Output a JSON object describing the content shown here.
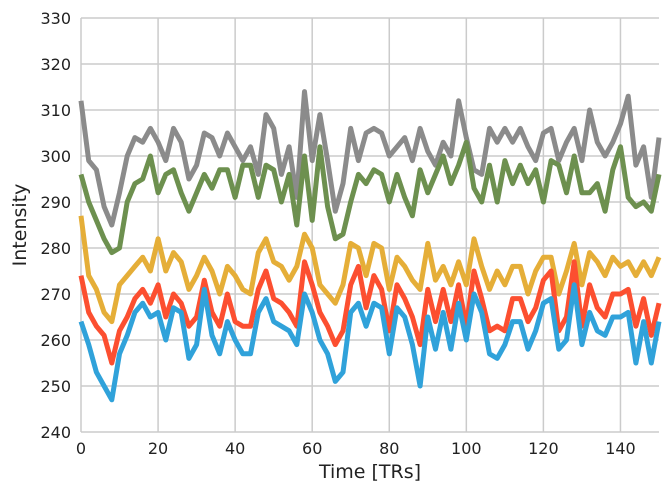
{
  "chart_data": {
    "type": "line",
    "title": "",
    "xlabel": "Time [TRs]",
    "ylabel": "Intensity",
    "xlim": [
      0,
      150
    ],
    "ylim": [
      240,
      330
    ],
    "xticks": [
      0,
      20,
      40,
      60,
      80,
      100,
      120,
      140
    ],
    "yticks": [
      240,
      250,
      260,
      270,
      280,
      290,
      300,
      310,
      320,
      330
    ],
    "grid": true,
    "legend": "none",
    "x": [
      0,
      2,
      4,
      6,
      8,
      10,
      12,
      14,
      16,
      18,
      20,
      22,
      24,
      26,
      28,
      30,
      32,
      34,
      36,
      38,
      40,
      42,
      44,
      46,
      48,
      50,
      52,
      54,
      56,
      58,
      60,
      62,
      64,
      66,
      68,
      70,
      72,
      74,
      76,
      78,
      80,
      82,
      84,
      86,
      88,
      90,
      92,
      94,
      96,
      98,
      100,
      102,
      104,
      106,
      108,
      110,
      112,
      114,
      116,
      118,
      120,
      122,
      124,
      126,
      128,
      130,
      132,
      134,
      136,
      138,
      140,
      142,
      144,
      146,
      148,
      150
    ],
    "series": [
      {
        "color": "#8b8b8b",
        "values": [
          312,
          299,
          297,
          289,
          285,
          292,
          300,
          304,
          303,
          306,
          303,
          299,
          306,
          303,
          295,
          298,
          305,
          304,
          300,
          305,
          302,
          299,
          302,
          296,
          309,
          306,
          296,
          302,
          291,
          314,
          299,
          309,
          299,
          288,
          294,
          306,
          299,
          305,
          306,
          305,
          300,
          302,
          304,
          299,
          306,
          301,
          298,
          303,
          300,
          312,
          304,
          297,
          296,
          306,
          303,
          306,
          303,
          306,
          302,
          299,
          305,
          306,
          299,
          303,
          306,
          299,
          310,
          303,
          300,
          303,
          307,
          313,
          298,
          302,
          291,
          304
        ]
      },
      {
        "color": "#6d904f",
        "values": [
          296,
          290,
          286,
          282,
          279,
          280,
          290,
          294,
          295,
          300,
          292,
          296,
          297,
          292,
          288,
          292,
          296,
          293,
          297,
          297,
          291,
          298,
          298,
          291,
          298,
          297,
          290,
          296,
          285,
          300,
          286,
          302,
          289,
          282,
          283,
          290,
          296,
          294,
          297,
          296,
          290,
          296,
          291,
          287,
          297,
          292,
          296,
          300,
          294,
          298,
          303,
          293,
          290,
          298,
          290,
          299,
          294,
          298,
          294,
          297,
          290,
          299,
          298,
          292,
          300,
          292,
          292,
          294,
          288,
          297,
          302,
          291,
          289,
          290,
          288,
          296
        ]
      },
      {
        "color": "#e5ae38",
        "values": [
          287,
          274,
          271,
          266,
          264,
          272,
          274,
          276,
          278,
          275,
          282,
          275,
          279,
          277,
          271,
          274,
          278,
          275,
          270,
          276,
          274,
          271,
          270,
          279,
          282,
          277,
          276,
          273,
          276,
          283,
          280,
          272,
          270,
          268,
          272,
          281,
          280,
          274,
          281,
          280,
          271,
          278,
          276,
          273,
          271,
          281,
          273,
          276,
          272,
          277,
          272,
          282,
          276,
          271,
          275,
          272,
          276,
          276,
          270,
          275,
          278,
          278,
          270,
          275,
          281,
          272,
          279,
          277,
          274,
          278,
          276,
          277,
          274,
          277,
          274,
          278
        ]
      },
      {
        "color": "#fc4f30",
        "values": [
          274,
          266,
          263,
          261,
          255,
          262,
          265,
          269,
          271,
          268,
          272,
          265,
          270,
          268,
          263,
          265,
          273,
          266,
          263,
          270,
          264,
          263,
          263,
          271,
          275,
          269,
          268,
          266,
          263,
          277,
          272,
          266,
          263,
          259,
          262,
          272,
          276,
          267,
          274,
          271,
          262,
          272,
          269,
          265,
          259,
          271,
          264,
          271,
          264,
          272,
          263,
          275,
          269,
          262,
          263,
          262,
          269,
          269,
          264,
          267,
          273,
          275,
          262,
          265,
          277,
          263,
          272,
          267,
          265,
          270,
          270,
          271,
          263,
          269,
          261,
          268
        ]
      },
      {
        "color": "#30a2da",
        "values": [
          264,
          259,
          253,
          250,
          247,
          257,
          261,
          266,
          268,
          265,
          266,
          260,
          267,
          266,
          256,
          259,
          271,
          261,
          257,
          264,
          260,
          257,
          257,
          266,
          269,
          264,
          263,
          262,
          259,
          270,
          266,
          260,
          257,
          251,
          253,
          266,
          268,
          263,
          268,
          267,
          257,
          267,
          265,
          259,
          250,
          265,
          258,
          266,
          258,
          268,
          260,
          270,
          266,
          257,
          256,
          259,
          264,
          264,
          258,
          262,
          268,
          269,
          258,
          260,
          272,
          259,
          266,
          262,
          261,
          265,
          265,
          266,
          255,
          264,
          255,
          264
        ]
      }
    ]
  }
}
